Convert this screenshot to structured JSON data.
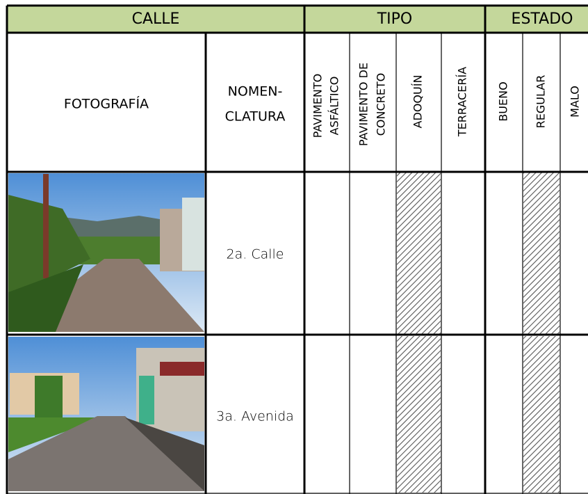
{
  "header": {
    "groups": [
      "CALLE",
      "TIPO",
      "ESTADO"
    ]
  },
  "columns": {
    "photo": "FOTOGRAFÍA",
    "nomenclature": [
      "NOMEN-",
      "CLATURA"
    ],
    "tipo": [
      [
        "PAVIMENTO",
        "ASFÁLTICO"
      ],
      [
        "PAVIMENTO DE",
        "CONCRETO"
      ],
      [
        "ADOQUÍN"
      ],
      [
        "TERRACERÍA"
      ]
    ],
    "estado": [
      [
        "BUENO"
      ],
      [
        "REGULAR"
      ],
      [
        "MALO"
      ]
    ]
  },
  "rows": [
    {
      "nomenclature": "2a. Calle"
    },
    {
      "nomenclature": "3a. Avenida"
    }
  ]
}
